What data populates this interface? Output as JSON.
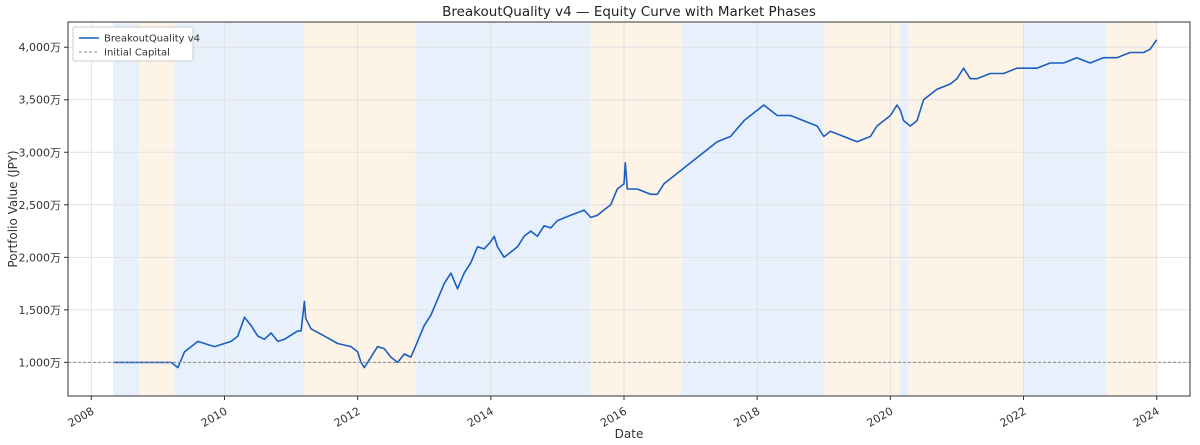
{
  "chart_data": {
    "type": "line",
    "title": "BreakoutQuality v4  —  Equity Curve with Market Phases",
    "xlabel": "Date",
    "ylabel": "Portfolio Value (JPY)",
    "xlim": [
      2007.65,
      2024.5
    ],
    "ylim": [
      680,
      4240
    ],
    "x_ticks": [
      2008,
      2010,
      2012,
      2014,
      2016,
      2018,
      2020,
      2022,
      2024
    ],
    "x_tick_labels": [
      "2008",
      "2010",
      "2012",
      "2014",
      "2016",
      "2018",
      "2020",
      "2022",
      "2024"
    ],
    "y_ticks": [
      1000,
      1500,
      2000,
      2500,
      3000,
      3500,
      4000
    ],
    "y_tick_labels": [
      "1,000万",
      "1,500万",
      "2,000万",
      "2,500万",
      "3,000万",
      "3,500万",
      "4,000万"
    ],
    "y_unit": "万 JPY",
    "grid": true,
    "legend_position": "top-left",
    "colors": {
      "line": "#1a5fbf",
      "initial_capital": "#888888",
      "bull": "#e8f1fb",
      "bear": "#fdf3e7",
      "grid": "#e2e2e2",
      "frame": "#333333"
    },
    "phases": [
      {
        "start": 2008.33,
        "end": 2008.72,
        "kind": "bull"
      },
      {
        "start": 2008.72,
        "end": 2009.25,
        "kind": "bear"
      },
      {
        "start": 2009.25,
        "end": 2011.2,
        "kind": "bull"
      },
      {
        "start": 2011.2,
        "end": 2012.87,
        "kind": "bear"
      },
      {
        "start": 2012.87,
        "end": 2015.5,
        "kind": "bull"
      },
      {
        "start": 2015.5,
        "end": 2016.87,
        "kind": "bear"
      },
      {
        "start": 2016.87,
        "end": 2019.0,
        "kind": "bull"
      },
      {
        "start": 2019.0,
        "end": 2020.15,
        "kind": "bear"
      },
      {
        "start": 2020.15,
        "end": 2020.28,
        "kind": "bull"
      },
      {
        "start": 2020.28,
        "end": 2022.0,
        "kind": "bear"
      },
      {
        "start": 2022.0,
        "end": 2023.25,
        "kind": "bull"
      },
      {
        "start": 2023.25,
        "end": 2024.0,
        "kind": "bear"
      }
    ],
    "series": [
      {
        "name": "BreakoutQuality v4",
        "x": [
          2008.33,
          2008.6,
          2009.0,
          2009.2,
          2009.3,
          2009.4,
          2009.5,
          2009.6,
          2009.7,
          2009.85,
          2010.0,
          2010.1,
          2010.2,
          2010.3,
          2010.4,
          2010.5,
          2010.6,
          2010.7,
          2010.8,
          2010.9,
          2011.0,
          2011.1,
          2011.15,
          2011.2,
          2011.22,
          2011.3,
          2011.5,
          2011.7,
          2011.9,
          2012.0,
          2012.05,
          2012.1,
          2012.2,
          2012.3,
          2012.4,
          2012.5,
          2012.6,
          2012.7,
          2012.8,
          2012.9,
          2013.0,
          2013.1,
          2013.2,
          2013.3,
          2013.4,
          2013.5,
          2013.6,
          2013.7,
          2013.8,
          2013.9,
          2014.0,
          2014.05,
          2014.1,
          2014.2,
          2014.3,
          2014.4,
          2014.5,
          2014.6,
          2014.7,
          2014.8,
          2014.9,
          2015.0,
          2015.2,
          2015.4,
          2015.5,
          2015.6,
          2015.8,
          2015.9,
          2016.0,
          2016.02,
          2016.05,
          2016.2,
          2016.4,
          2016.5,
          2016.6,
          2016.8,
          2017.0,
          2017.2,
          2017.4,
          2017.6,
          2017.8,
          2017.9,
          2018.0,
          2018.1,
          2018.3,
          2018.5,
          2018.7,
          2018.9,
          2019.0,
          2019.1,
          2019.3,
          2019.5,
          2019.7,
          2019.8,
          2019.9,
          2020.0,
          2020.1,
          2020.15,
          2020.2,
          2020.3,
          2020.4,
          2020.5,
          2020.7,
          2020.9,
          2021.0,
          2021.1,
          2021.2,
          2021.3,
          2021.5,
          2021.7,
          2021.9,
          2022.0,
          2022.2,
          2022.4,
          2022.6,
          2022.8,
          2023.0,
          2023.2,
          2023.4,
          2023.6,
          2023.8,
          2023.9,
          2024.0
        ],
        "y": [
          1000,
          1000,
          1000,
          1000,
          950,
          1100,
          1150,
          1200,
          1180,
          1150,
          1180,
          1200,
          1250,
          1430,
          1350,
          1250,
          1220,
          1280,
          1200,
          1220,
          1260,
          1300,
          1300,
          1580,
          1420,
          1320,
          1250,
          1180,
          1150,
          1100,
          1000,
          950,
          1050,
          1150,
          1130,
          1050,
          1000,
          1080,
          1050,
          1200,
          1350,
          1450,
          1600,
          1750,
          1850,
          1700,
          1850,
          1950,
          2100,
          2080,
          2150,
          2200,
          2100,
          2000,
          2050,
          2100,
          2200,
          2250,
          2200,
          2300,
          2280,
          2350,
          2400,
          2450,
          2380,
          2400,
          2500,
          2650,
          2700,
          2900,
          2650,
          2650,
          2600,
          2600,
          2700,
          2800,
          2900,
          3000,
          3100,
          3150,
          3300,
          3350,
          3400,
          3450,
          3350,
          3350,
          3300,
          3250,
          3150,
          3200,
          3150,
          3100,
          3150,
          3250,
          3300,
          3350,
          3450,
          3400,
          3300,
          3250,
          3300,
          3500,
          3600,
          3650,
          3700,
          3800,
          3700,
          3700,
          3750,
          3750,
          3800,
          3800,
          3800,
          3850,
          3850,
          3900,
          3850,
          3900,
          3900,
          3950,
          3950,
          3980,
          4070
        ],
        "color": "#1a5fbf"
      },
      {
        "name": "Initial Capital",
        "x": [
          2007.65,
          2024.5
        ],
        "y": [
          1000,
          1000
        ],
        "color": "#888888",
        "style": "dashed"
      }
    ]
  },
  "legend": {
    "items": [
      {
        "label": "BreakoutQuality v4",
        "style": "solid",
        "color": "#1a5fbf"
      },
      {
        "label": "Initial Capital",
        "style": "dashed",
        "color": "#888888"
      }
    ]
  }
}
